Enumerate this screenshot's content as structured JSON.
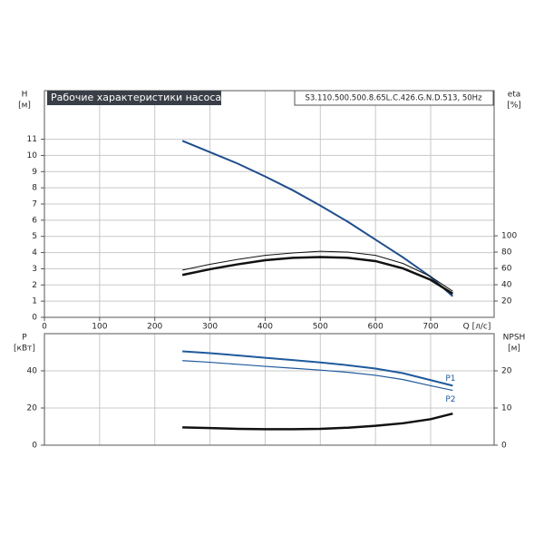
{
  "chart_data": [
    {
      "type": "line",
      "title": "Рабочие характеристики насоса",
      "subtitle": "S3.110.500.500.8.65L.C.426.G.N.D.513, 50Hz",
      "ylabel": "H",
      "yunit": "[м]",
      "y2label": "eta",
      "y2unit": "[%]",
      "xlabel": "Q [л/с]",
      "xlim": [
        0,
        815
      ],
      "xticks": [
        0,
        100,
        200,
        300,
        400,
        500,
        600,
        700
      ],
      "ylim": [
        0,
        14
      ],
      "yticks": [
        0,
        1,
        2,
        3,
        4,
        5,
        6,
        7,
        8,
        9,
        10,
        11
      ],
      "y2lim": [
        0,
        278
      ],
      "y2ticks": [
        20,
        40,
        60,
        80,
        100
      ],
      "grid": true,
      "x": [
        250,
        300,
        350,
        400,
        450,
        500,
        550,
        600,
        650,
        700,
        740
      ],
      "series": [
        {
          "color": "#1f4e8c",
          "width": 2,
          "values": [
            10.9,
            10.2,
            9.5,
            8.7,
            7.85,
            6.9,
            5.9,
            4.8,
            3.7,
            2.5,
            1.3
          ]
        },
        {
          "axis": "y2",
          "color": "#111111",
          "width": 1,
          "values": [
            58,
            65,
            71,
            76,
            79,
            81,
            80,
            76,
            66,
            50,
            32
          ]
        },
        {
          "axis": "y2",
          "color": "#111111",
          "width": 2.5,
          "values": [
            52,
            59,
            65,
            70,
            73,
            74,
            73,
            69,
            60,
            46,
            29
          ]
        }
      ]
    },
    {
      "type": "line",
      "ylabel": "P",
      "yunit": "[кВт]",
      "y2label": "NPSH",
      "y2unit": "[м]",
      "xlim": [
        0,
        815
      ],
      "ylim": [
        0,
        60
      ],
      "yticks": [
        0,
        20,
        40
      ],
      "y2lim": [
        0,
        30
      ],
      "y2ticks": [
        0,
        10,
        20
      ],
      "grid": true,
      "x": [
        250,
        300,
        350,
        400,
        450,
        500,
        550,
        600,
        650,
        700,
        740
      ],
      "series": [
        {
          "name": "P1",
          "color": "#1f5a9c",
          "width": 2,
          "values": [
            50.5,
            49.5,
            48.3,
            47,
            45.8,
            44.5,
            43,
            41.2,
            38.7,
            35,
            32
          ]
        },
        {
          "name": "P2",
          "color": "#1f5a9c",
          "width": 1.2,
          "values": [
            45.5,
            44.6,
            43.5,
            42.4,
            41.4,
            40.4,
            39.2,
            37.6,
            35.3,
            32,
            29.5
          ]
        },
        {
          "axis": "y2",
          "color": "#111111",
          "width": 2.5,
          "values": [
            4.8,
            4.6,
            4.4,
            4.3,
            4.3,
            4.4,
            4.7,
            5.2,
            5.9,
            7,
            8.5
          ]
        }
      ]
    }
  ]
}
